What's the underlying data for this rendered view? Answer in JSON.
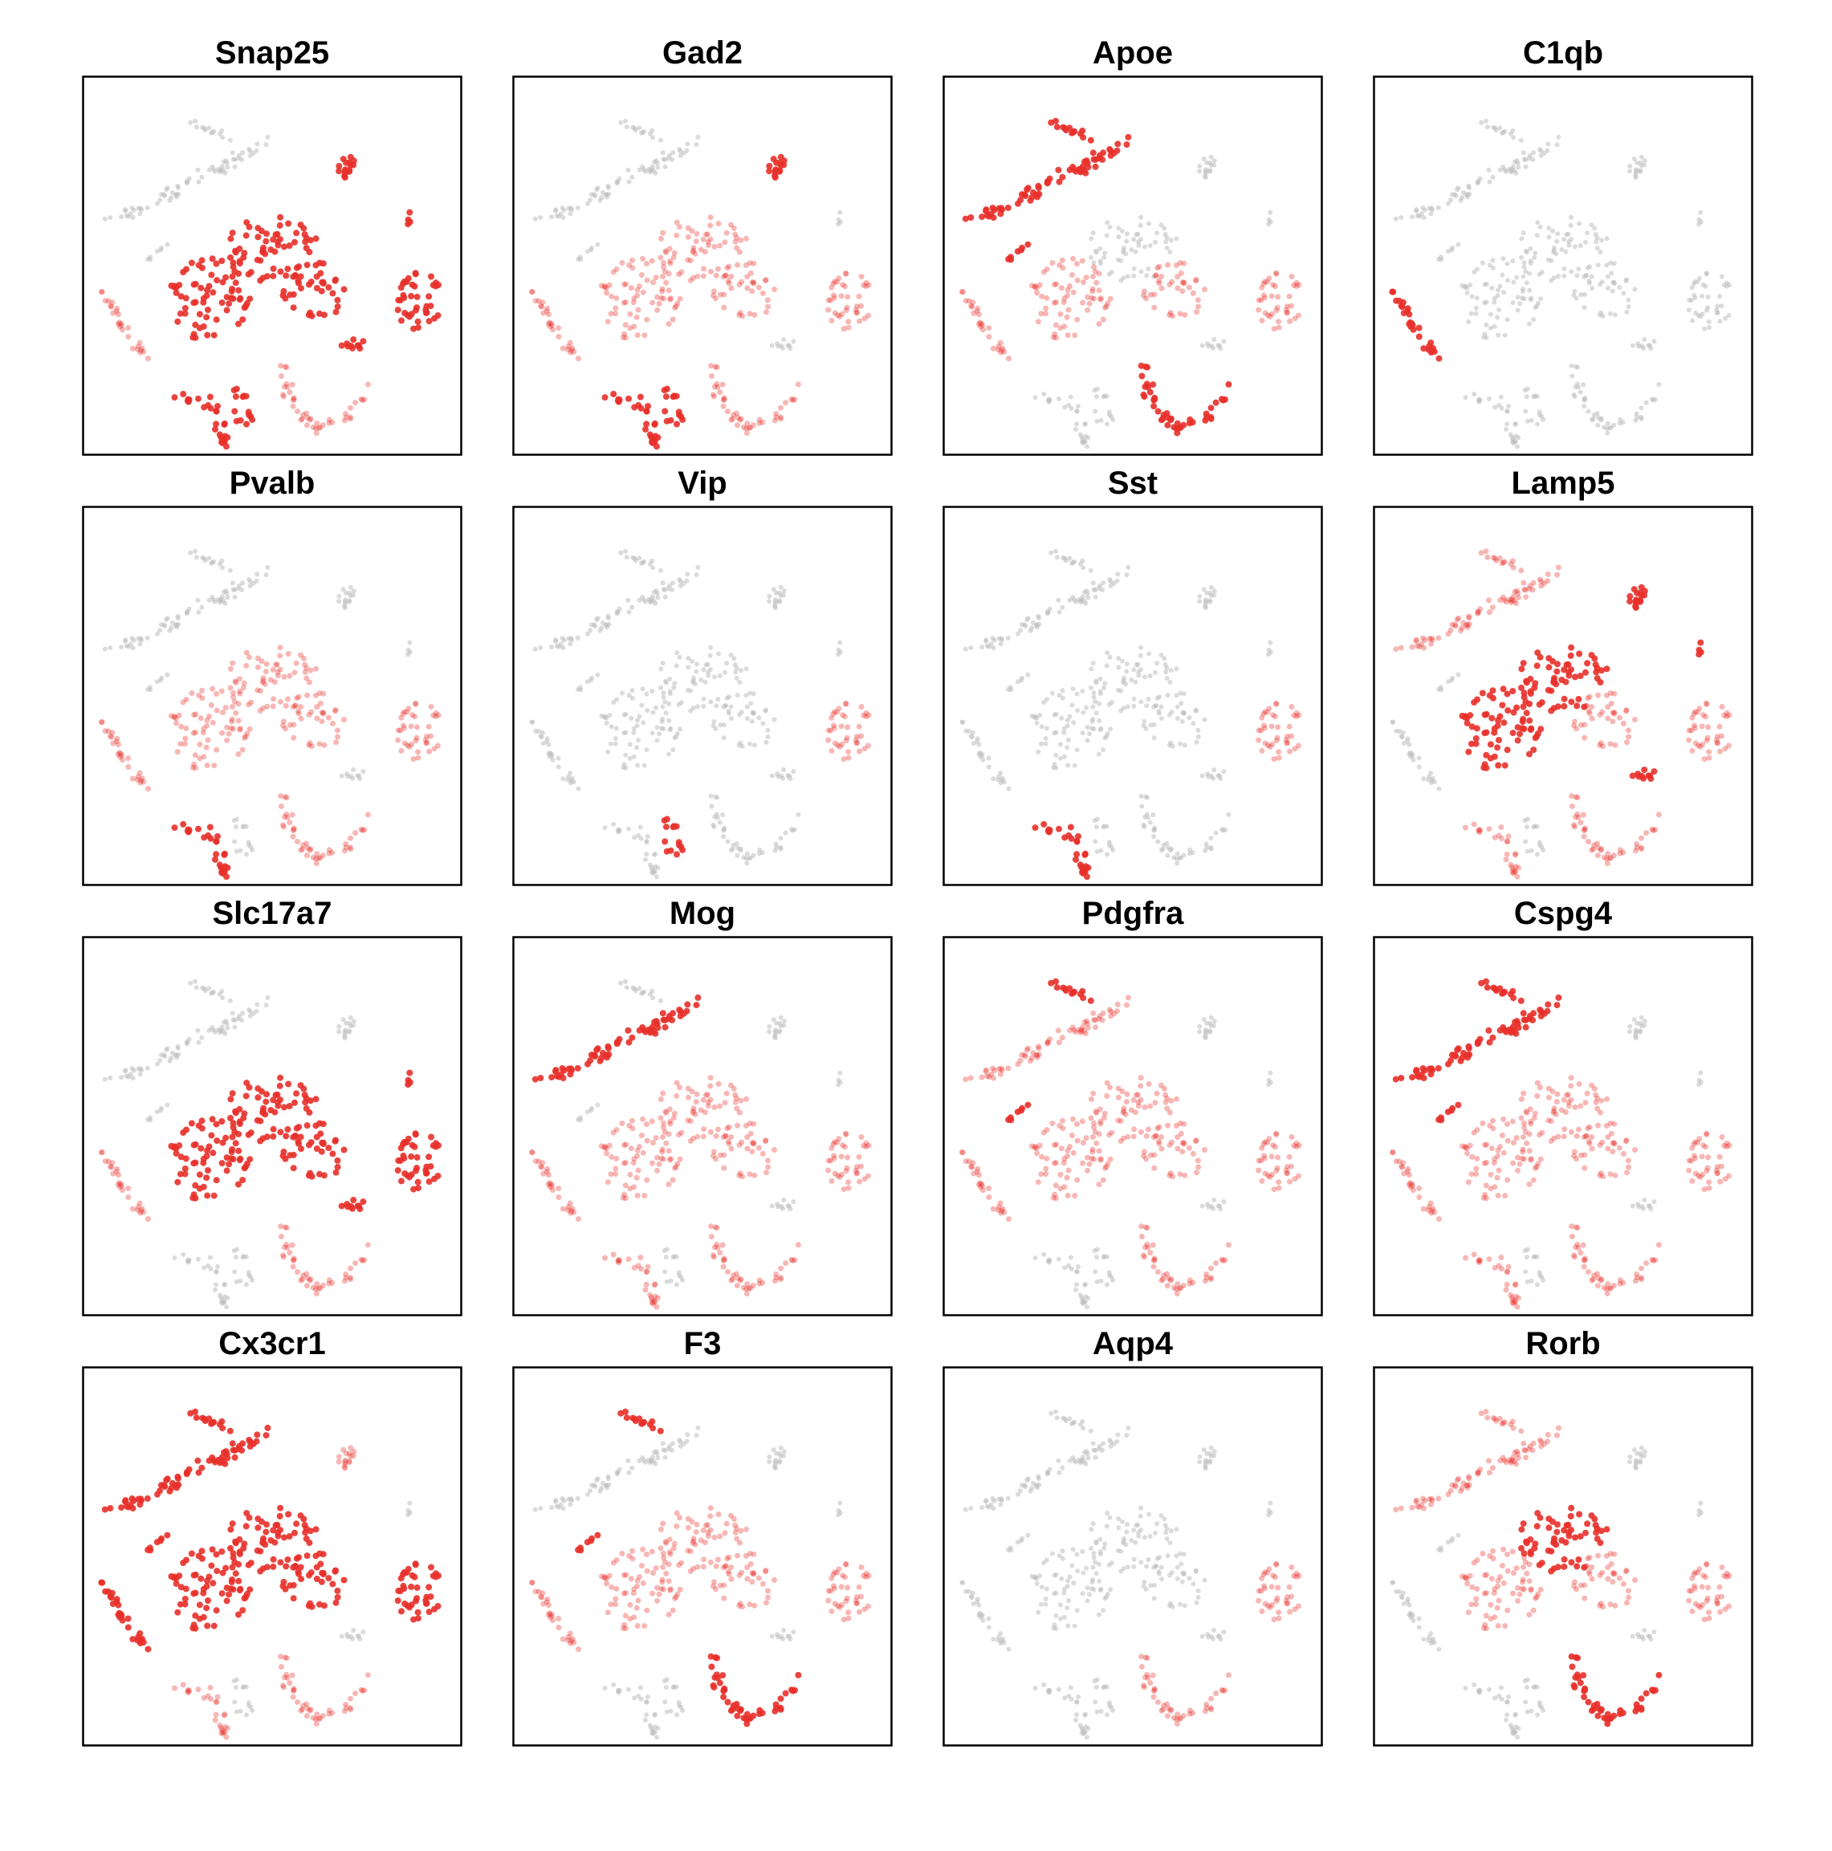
{
  "colors": {
    "high": "#e8302a",
    "low": "#bdbdbd",
    "frame": "#000000",
    "background": "#ffffff"
  },
  "chart_data": [
    {
      "type": "scatter",
      "title": "Snap25",
      "grid": false,
      "legend": "none",
      "high_clusters": [
        "top_right_small",
        "center_top",
        "center_left",
        "center_right",
        "right_blob",
        "right_small_dot",
        "lower_right_small",
        "bottom_left_hook",
        "bottom_small"
      ],
      "mid_clusters": [
        "bottom_right_hook",
        "left_curve"
      ]
    },
    {
      "type": "scatter",
      "title": "Gad2",
      "grid": false,
      "legend": "none",
      "high_clusters": [
        "top_right_small",
        "bottom_left_hook",
        "bottom_small"
      ],
      "mid_clusters": [
        "bottom_right_hook",
        "left_curve",
        "center_top",
        "center_left",
        "center_right",
        "right_blob"
      ]
    },
    {
      "type": "scatter",
      "title": "Apoe",
      "grid": false,
      "legend": "none",
      "high_clusters": [
        "top_small",
        "diagonal",
        "short_diagonal",
        "bottom_right_hook"
      ],
      "mid_clusters": [
        "left_curve",
        "center_left",
        "center_right",
        "right_blob"
      ]
    },
    {
      "type": "scatter",
      "title": "C1qb",
      "grid": false,
      "legend": "none",
      "high_clusters": [
        "left_curve"
      ],
      "mid_clusters": []
    },
    {
      "type": "scatter",
      "title": "Pvalb",
      "grid": false,
      "legend": "none",
      "high_clusters": [
        "bottom_left_hook"
      ],
      "mid_clusters": [
        "center_top",
        "center_left",
        "center_right",
        "right_blob",
        "left_curve",
        "bottom_right_hook"
      ]
    },
    {
      "type": "scatter",
      "title": "Vip",
      "grid": false,
      "legend": "none",
      "high_clusters": [
        "bottom_small"
      ],
      "mid_clusters": [
        "right_blob"
      ]
    },
    {
      "type": "scatter",
      "title": "Sst",
      "grid": false,
      "legend": "none",
      "high_clusters": [
        "bottom_left_hook"
      ],
      "mid_clusters": [
        "right_blob"
      ]
    },
    {
      "type": "scatter",
      "title": "Lamp5",
      "grid": false,
      "legend": "none",
      "high_clusters": [
        "top_right_small",
        "center_top",
        "center_left",
        "right_small_dot",
        "lower_right_small"
      ],
      "mid_clusters": [
        "center_right",
        "right_blob",
        "bottom_right_hook",
        "bottom_left_hook",
        "top_small",
        "diagonal"
      ]
    },
    {
      "type": "scatter",
      "title": "Slc17a7",
      "grid": false,
      "legend": "none",
      "high_clusters": [
        "center_top",
        "center_left",
        "center_right",
        "right_blob",
        "right_small_dot",
        "lower_right_small"
      ],
      "mid_clusters": [
        "left_curve",
        "bottom_right_hook"
      ]
    },
    {
      "type": "scatter",
      "title": "Mog",
      "grid": false,
      "legend": "none",
      "high_clusters": [
        "diagonal"
      ],
      "mid_clusters": [
        "center_top",
        "center_left",
        "center_right",
        "right_blob",
        "left_curve",
        "bottom_left_hook",
        "bottom_right_hook"
      ]
    },
    {
      "type": "scatter",
      "title": "Pdgfra",
      "grid": false,
      "legend": "none",
      "high_clusters": [
        "top_small",
        "short_diagonal"
      ],
      "mid_clusters": [
        "diagonal",
        "center_top",
        "center_left",
        "center_right",
        "right_blob",
        "left_curve",
        "bottom_right_hook"
      ]
    },
    {
      "type": "scatter",
      "title": "Cspg4",
      "grid": false,
      "legend": "none",
      "high_clusters": [
        "top_small",
        "diagonal",
        "short_diagonal"
      ],
      "mid_clusters": [
        "center_top",
        "center_left",
        "center_right",
        "right_blob",
        "left_curve",
        "bottom_right_hook",
        "bottom_left_hook"
      ]
    },
    {
      "type": "scatter",
      "title": "Cx3cr1",
      "grid": false,
      "legend": "none",
      "high_clusters": [
        "top_small",
        "diagonal",
        "short_diagonal",
        "left_curve",
        "right_blob",
        "center_left",
        "center_top",
        "center_right"
      ],
      "mid_clusters": [
        "bottom_right_hook",
        "bottom_left_hook",
        "top_right_small"
      ]
    },
    {
      "type": "scatter",
      "title": "F3",
      "grid": false,
      "legend": "none",
      "high_clusters": [
        "top_small",
        "short_diagonal",
        "bottom_right_hook"
      ],
      "mid_clusters": [
        "center_top",
        "center_left",
        "center_right",
        "right_blob",
        "left_curve"
      ]
    },
    {
      "type": "scatter",
      "title": "Aqp4",
      "grid": false,
      "legend": "none",
      "high_clusters": [],
      "mid_clusters": [
        "bottom_right_hook",
        "right_blob"
      ]
    },
    {
      "type": "scatter",
      "title": "Rorb",
      "grid": false,
      "legend": "none",
      "high_clusters": [
        "center_top",
        "bottom_right_hook"
      ],
      "mid_clusters": [
        "center_left",
        "center_right",
        "right_blob",
        "top_small",
        "diagonal"
      ]
    }
  ]
}
